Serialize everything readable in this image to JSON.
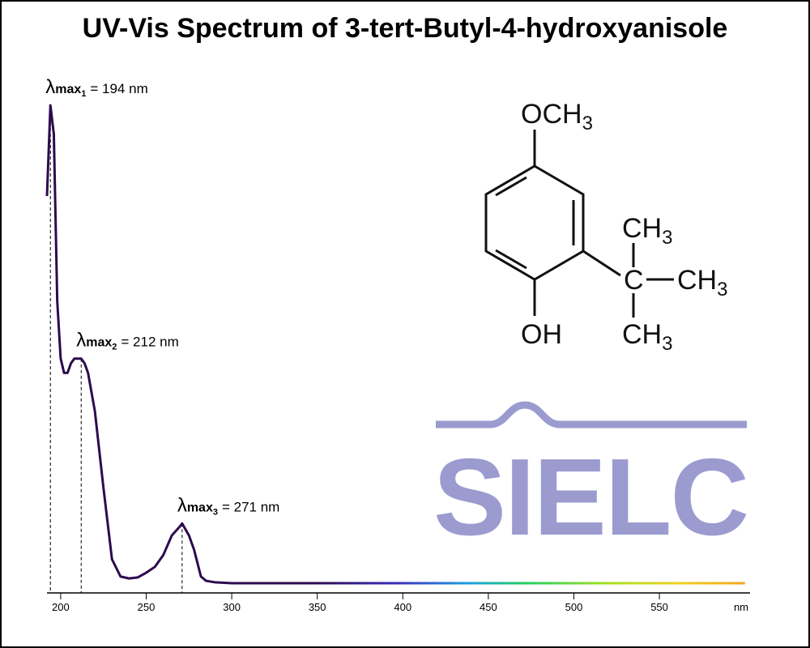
{
  "chart_data": {
    "type": "line",
    "title": "UV-Vis Spectrum of 3-tert-Butyl-4-hydroxyanisole",
    "x": [
      192,
      194,
      196,
      198,
      200,
      202,
      204,
      206,
      208,
      210,
      212,
      214,
      216,
      220,
      225,
      230,
      235,
      240,
      245,
      250,
      255,
      260,
      265,
      270,
      271,
      275,
      278,
      282,
      285,
      290,
      300,
      400,
      500,
      600
    ],
    "values": [
      0.81,
      1.0,
      0.94,
      0.59,
      0.47,
      0.44,
      0.44,
      0.46,
      0.47,
      0.47,
      0.47,
      0.46,
      0.44,
      0.36,
      0.2,
      0.05,
      0.014,
      0.01,
      0.012,
      0.022,
      0.034,
      0.059,
      0.1,
      0.12,
      0.125,
      0.1,
      0.07,
      0.014,
      0.005,
      0.002,
      0,
      0,
      0,
      0
    ],
    "color": "#2d0a4e",
    "xlim": [
      192,
      603
    ],
    "ylim": [
      0,
      1
    ],
    "xticks": [
      200,
      250,
      300,
      350,
      400,
      450,
      500,
      550
    ],
    "xlabel": "nm",
    "annotations": [
      {
        "symbol": "λ",
        "label": "max",
        "index": "1",
        "text": "= 194 nm",
        "x": 194,
        "y": 1.0
      },
      {
        "symbol": "λ",
        "label": "max",
        "index": "2",
        "text": "= 212 nm",
        "x": 212,
        "y": 0.47
      },
      {
        "symbol": "λ",
        "label": "max",
        "index": "3",
        "text": "= 271 nm",
        "x": 271,
        "y": 0.125
      }
    ]
  },
  "structure": {
    "labels": [
      {
        "text": "OCH",
        "sub": "3"
      },
      {
        "text": "CH",
        "sub": "3"
      },
      {
        "text": "C"
      },
      {
        "text": "CH",
        "sub": "3"
      },
      {
        "text": "OH"
      },
      {
        "text": "CH",
        "sub": "3"
      }
    ]
  },
  "logo": "SIELC"
}
